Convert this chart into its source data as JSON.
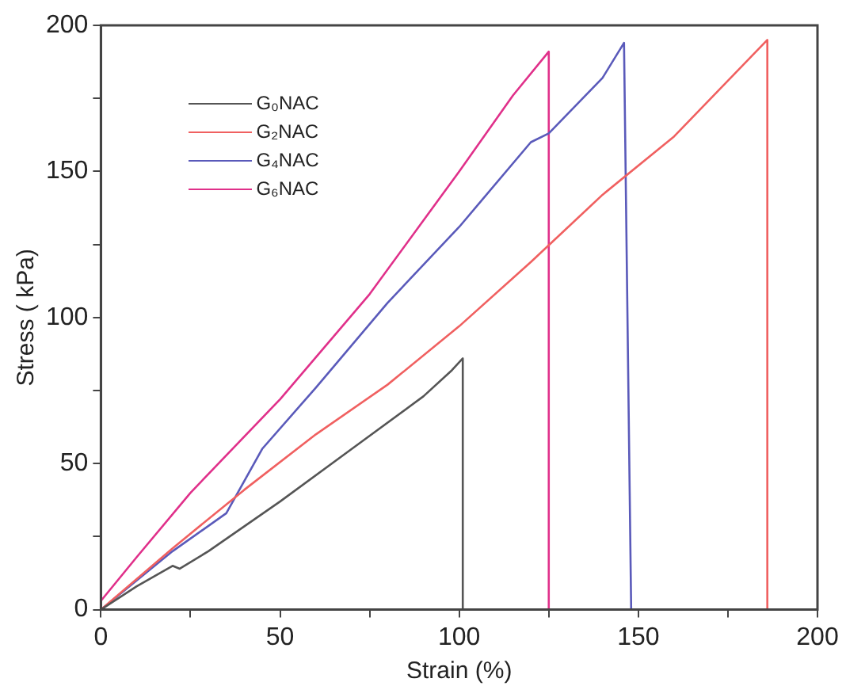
{
  "chart_data": {
    "type": "line",
    "xlabel": "Strain (%)",
    "ylabel": "Stress ( kPa)",
    "xlim": [
      0,
      200
    ],
    "ylim": [
      0,
      200
    ],
    "xticks": [
      0,
      {
        "value": 25,
        "label": null
      },
      50,
      {
        "value": 75,
        "label": null
      },
      100,
      {
        "value": 125,
        "label": null
      },
      150,
      {
        "value": 175,
        "label": null
      },
      200
    ],
    "yticks": [
      0,
      {
        "value": 25,
        "label": null
      },
      50,
      {
        "value": 75,
        "label": null
      },
      100,
      {
        "value": 125,
        "label": null
      },
      150,
      {
        "value": 175,
        "label": null
      },
      200
    ],
    "grid": false,
    "legend": "top left",
    "marker": "none",
    "line_style": "solid",
    "series": [
      {
        "name": "G₀NAC",
        "color": "#555555",
        "x": [
          0,
          10,
          20,
          22,
          30,
          50,
          70,
          90,
          98,
          101,
          101
        ],
        "values": [
          0,
          8,
          15,
          14,
          20,
          37,
          55,
          73,
          82,
          86,
          0
        ]
      },
      {
        "name": "G₂NAC",
        "color": "#f06060",
        "x": [
          0,
          20,
          40,
          60,
          80,
          100,
          120,
          140,
          160,
          186,
          186
        ],
        "values": [
          0,
          21,
          41,
          60,
          77,
          97,
          119,
          142,
          162,
          195,
          0
        ]
      },
      {
        "name": "G₄NAC",
        "color": "#5a5aba",
        "x": [
          0,
          20,
          35,
          45,
          60,
          80,
          100,
          120,
          125,
          140,
          146,
          148
        ],
        "values": [
          0,
          20,
          33,
          55,
          76,
          105,
          131,
          160,
          163,
          182,
          194,
          0
        ]
      },
      {
        "name": "G₆NAC",
        "color": "#e0308a",
        "x": [
          0,
          10,
          25,
          50,
          75,
          100,
          115,
          125,
          125
        ],
        "values": [
          3,
          18,
          40,
          72,
          108,
          150,
          176,
          191,
          0
        ]
      }
    ]
  }
}
